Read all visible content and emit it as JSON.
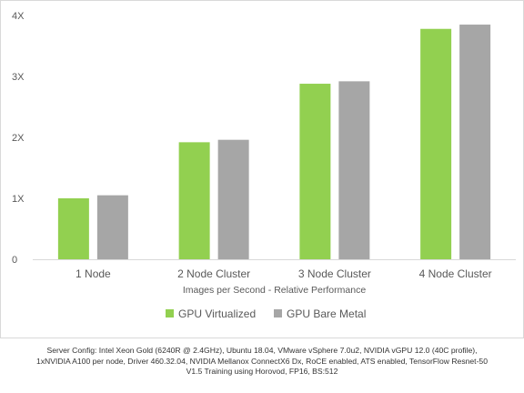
{
  "chart_data": {
    "type": "bar",
    "categories": [
      "1 Node",
      "2 Node Cluster",
      "3 Node Cluster",
      "4 Node Cluster"
    ],
    "series": [
      {
        "name": "GPU Virtualized",
        "values": [
          1.0,
          1.92,
          2.88,
          3.78
        ],
        "color": "#92d050"
      },
      {
        "name": "GPU Bare Metal",
        "values": [
          1.05,
          1.96,
          2.92,
          3.85
        ],
        "color": "#a6a6a6"
      }
    ],
    "title": "",
    "xlabel": "Images per Second - Relative Performance",
    "ylabel": "",
    "ylim": [
      0,
      4
    ],
    "yticks": [
      0,
      1,
      2,
      3,
      4
    ],
    "ytick_labels": [
      "0",
      "1X",
      "2X",
      "3X",
      "4X"
    ],
    "grid": false,
    "legend": "bottom"
  },
  "footnote": {
    "line1": "Server Config: Intel Xeon Gold (6240R @ 2.4GHz), Ubuntu 18.04, VMware vSphere 7.0u2, NVIDIA vGPU 12.0 (40C profile),",
    "line2": "1xNVIDIA A100 per node, Driver 460.32.04, NVIDIA Mellanox ConnectX6 Dx, RoCE enabled, ATS enabled, TensorFlow Resnet-50",
    "line3": "V1.5 Training using Horovod, FP16, BS:512"
  }
}
